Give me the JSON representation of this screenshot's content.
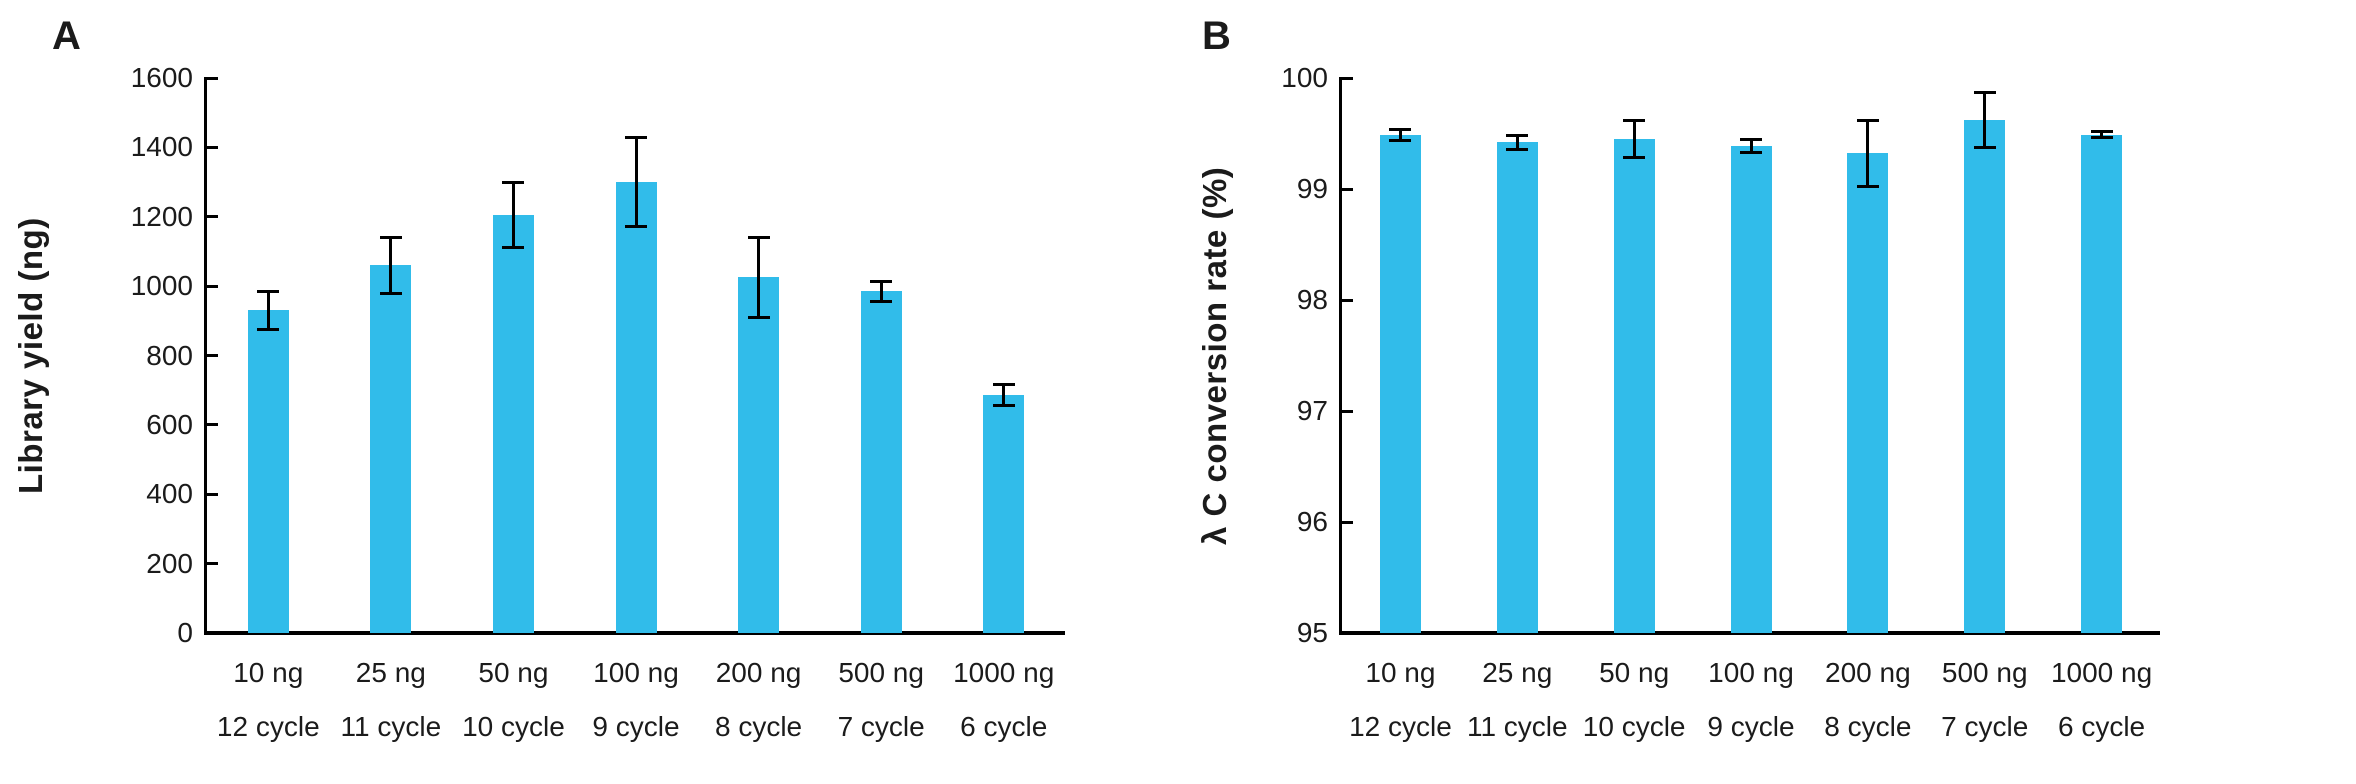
{
  "figure": {
    "background_color": "#ffffff",
    "axis_color": "#000000",
    "text_color": "#1b1b1b",
    "bar_color": "#31bcea",
    "panels": [
      {
        "label": "A",
        "ylabel": "Library yield (ng)"
      },
      {
        "label": "B",
        "ylabel": "λ C conversion rate (%)"
      }
    ]
  },
  "chart_data": [
    {
      "type": "bar",
      "panel_label": "A",
      "title": "",
      "xlabel": "",
      "ylabel": "Library yield (ng)",
      "categories": [
        [
          "10 ng",
          "12 cycle"
        ],
        [
          "25 ng",
          "11 cycle"
        ],
        [
          "50 ng",
          "10 cycle"
        ],
        [
          "100 ng",
          "9 cycle"
        ],
        [
          "200 ng",
          "8 cycle"
        ],
        [
          "500 ng",
          "7 cycle"
        ],
        [
          "1000 ng",
          "6 cycle"
        ]
      ],
      "values": [
        930,
        1060,
        1205,
        1300,
        1025,
        985,
        685
      ],
      "errors": [
        55,
        80,
        95,
        128,
        115,
        28,
        30
      ],
      "ylim": [
        0,
        1600
      ],
      "yticks": [
        0,
        200,
        400,
        600,
        800,
        1000,
        1200,
        1400,
        1600
      ],
      "grid": false,
      "legend": null,
      "bar_color": "#31bcea",
      "error_bar_color": "#000000"
    },
    {
      "type": "bar",
      "panel_label": "B",
      "title": "",
      "xlabel": "",
      "ylabel": "λ C conversion rate (%)",
      "categories": [
        [
          "10 ng",
          "12 cycle"
        ],
        [
          "25 ng",
          "11 cycle"
        ],
        [
          "50 ng",
          "10 cycle"
        ],
        [
          "100 ng",
          "9 cycle"
        ],
        [
          "200 ng",
          "8 cycle"
        ],
        [
          "500 ng",
          "7 cycle"
        ],
        [
          "1000 ng",
          "6 cycle"
        ]
      ],
      "values": [
        99.49,
        99.42,
        99.45,
        99.39,
        99.32,
        99.62,
        99.49
      ],
      "errors": [
        0.05,
        0.06,
        0.17,
        0.06,
        0.3,
        0.25,
        0.03
      ],
      "ylim": [
        95,
        100
      ],
      "yticks": [
        95,
        96,
        97,
        98,
        99,
        100
      ],
      "grid": false,
      "legend": null,
      "bar_color": "#31bcea",
      "error_bar_color": "#000000"
    }
  ]
}
